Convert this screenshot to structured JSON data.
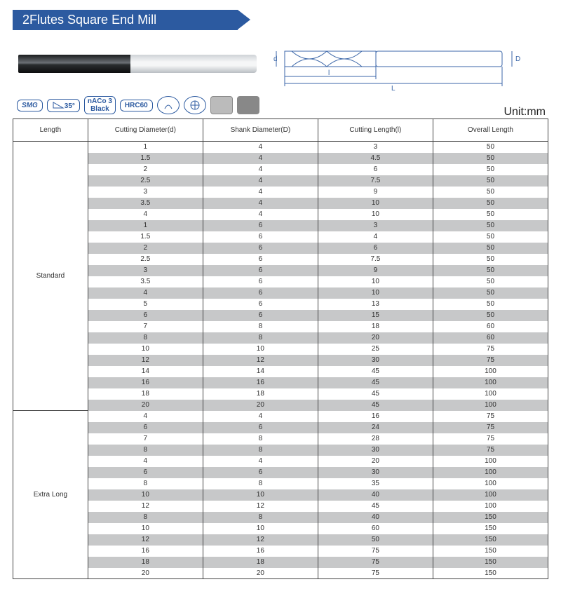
{
  "title": "2Flutes Square End Mill",
  "diagram_labels": {
    "d": "d",
    "D": "D",
    "l": "l",
    "L": "L"
  },
  "badges": {
    "smg": "SMG",
    "angle": "35°",
    "coating_top": "nACo 3",
    "coating_bot": "Black",
    "hardness": "HRC60"
  },
  "unit_label": "Unit:mm",
  "columns": [
    "Length",
    "Cutting Diameter(d)",
    "Shank Diameter(D)",
    "Cutting Length(l)",
    "Overall Length"
  ],
  "groups": [
    {
      "name": "Standard",
      "rows": [
        [
          "1",
          "4",
          "3",
          "50"
        ],
        [
          "1.5",
          "4",
          "4.5",
          "50"
        ],
        [
          "2",
          "4",
          "6",
          "50"
        ],
        [
          "2.5",
          "4",
          "7.5",
          "50"
        ],
        [
          "3",
          "4",
          "9",
          "50"
        ],
        [
          "3.5",
          "4",
          "10",
          "50"
        ],
        [
          "4",
          "4",
          "10",
          "50"
        ],
        [
          "1",
          "6",
          "3",
          "50"
        ],
        [
          "1.5",
          "6",
          "4",
          "50"
        ],
        [
          "2",
          "6",
          "6",
          "50"
        ],
        [
          "2.5",
          "6",
          "7.5",
          "50"
        ],
        [
          "3",
          "6",
          "9",
          "50"
        ],
        [
          "3.5",
          "6",
          "10",
          "50"
        ],
        [
          "4",
          "6",
          "10",
          "50"
        ],
        [
          "5",
          "6",
          "13",
          "50"
        ],
        [
          "6",
          "6",
          "15",
          "50"
        ],
        [
          "7",
          "8",
          "18",
          "60"
        ],
        [
          "8",
          "8",
          "20",
          "60"
        ],
        [
          "10",
          "10",
          "25",
          "75"
        ],
        [
          "12",
          "12",
          "30",
          "75"
        ],
        [
          "14",
          "14",
          "45",
          "100"
        ],
        [
          "16",
          "16",
          "45",
          "100"
        ],
        [
          "18",
          "18",
          "45",
          "100"
        ],
        [
          "20",
          "20",
          "45",
          "100"
        ]
      ]
    },
    {
      "name": "Extra Long",
      "rows": [
        [
          "4",
          "4",
          "16",
          "75"
        ],
        [
          "6",
          "6",
          "24",
          "75"
        ],
        [
          "7",
          "8",
          "28",
          "75"
        ],
        [
          "8",
          "8",
          "30",
          "75"
        ],
        [
          "4",
          "4",
          "20",
          "100"
        ],
        [
          "6",
          "6",
          "30",
          "100"
        ],
        [
          "8",
          "8",
          "35",
          "100"
        ],
        [
          "10",
          "10",
          "40",
          "100"
        ],
        [
          "12",
          "12",
          "45",
          "100"
        ],
        [
          "8",
          "8",
          "40",
          "150"
        ],
        [
          "10",
          "10",
          "60",
          "150"
        ],
        [
          "12",
          "12",
          "50",
          "150"
        ],
        [
          "16",
          "16",
          "75",
          "150"
        ],
        [
          "18",
          "18",
          "75",
          "150"
        ],
        [
          "20",
          "20",
          "75",
          "150"
        ]
      ]
    }
  ],
  "colors": {
    "header_bg": "#2c5aa0",
    "row_alt": "#c7c8c9",
    "border": "#444444"
  }
}
